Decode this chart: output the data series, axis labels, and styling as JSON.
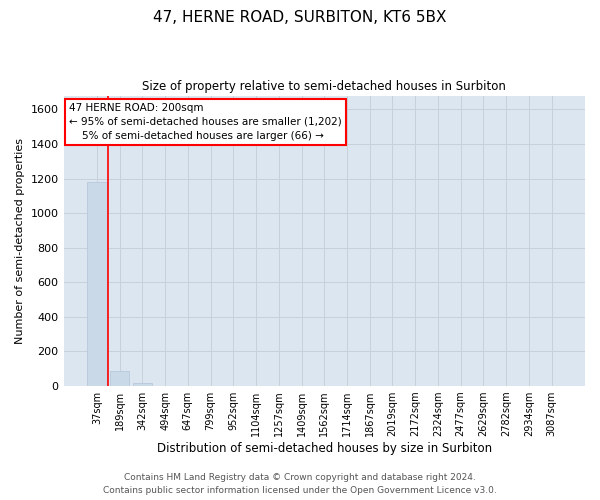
{
  "title": "47, HERNE ROAD, SURBITON, KT6 5BX",
  "subtitle": "Size of property relative to semi-detached houses in Surbiton",
  "xlabel": "Distribution of semi-detached houses by size in Surbiton",
  "ylabel": "Number of semi-detached properties",
  "categories": [
    "37sqm",
    "189sqm",
    "342sqm",
    "494sqm",
    "647sqm",
    "799sqm",
    "952sqm",
    "1104sqm",
    "1257sqm",
    "1409sqm",
    "1562sqm",
    "1714sqm",
    "1867sqm",
    "2019sqm",
    "2172sqm",
    "2324sqm",
    "2477sqm",
    "2629sqm",
    "2782sqm",
    "2934sqm",
    "3087sqm"
  ],
  "values": [
    1180,
    88,
    15,
    2,
    1,
    0,
    0,
    0,
    0,
    0,
    0,
    0,
    0,
    0,
    0,
    0,
    0,
    0,
    0,
    0,
    0
  ],
  "bar_color": "#c9d9e8",
  "bar_edge_color": "#b0c4d8",
  "ylim": [
    0,
    1680
  ],
  "yticks": [
    0,
    200,
    400,
    600,
    800,
    1000,
    1200,
    1400,
    1600
  ],
  "grid_color": "#c8d0da",
  "background_color": "#dce6f0",
  "red_line_x": 0.5,
  "annotation_line1": "47 HERNE ROAD: 200sqm",
  "annotation_line2": "← 95% of semi-detached houses are smaller (1,202)",
  "annotation_line3": "    5% of semi-detached houses are larger (66) →",
  "footer_line1": "Contains HM Land Registry data © Crown copyright and database right 2024.",
  "footer_line2": "Contains public sector information licensed under the Open Government Licence v3.0."
}
